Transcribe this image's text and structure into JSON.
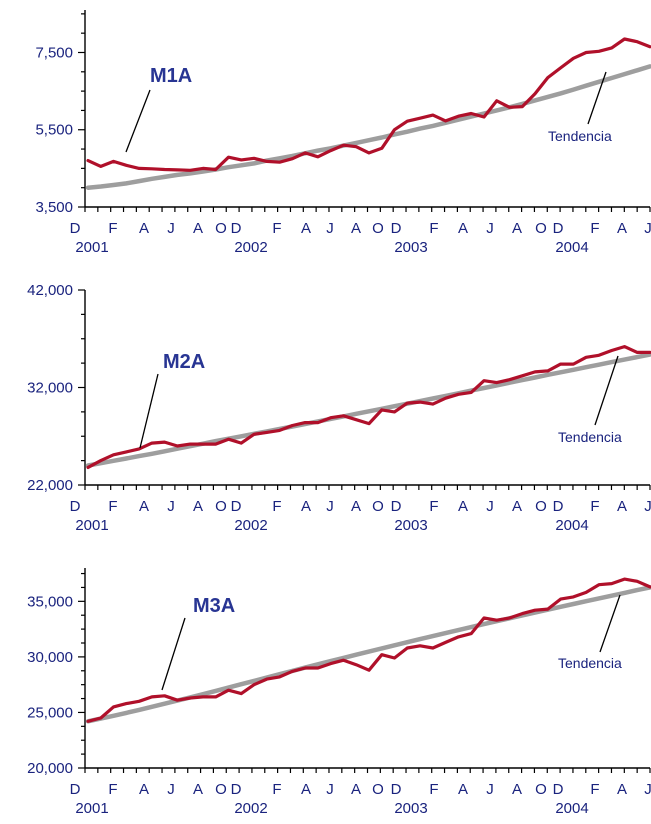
{
  "chart_data": [
    {
      "type": "line",
      "colors": {
        "series": "#b0102a",
        "trend": "#9e9e9e"
      },
      "ylim": [
        3500,
        8600
      ],
      "yticks": [
        3500,
        5500,
        7500
      ],
      "ytick_labels": [
        "3,500",
        "5,500",
        "7,500"
      ],
      "x_tick_labels": [
        "D",
        "F",
        "A",
        "J",
        "A",
        "O",
        "D",
        "F",
        "A",
        "J",
        "A",
        "O",
        "D",
        "F",
        "A",
        "J",
        "A",
        "O",
        "D",
        "F",
        "A",
        "J"
      ],
      "year_labels": [
        "2001",
        "2002",
        "2003",
        "2004"
      ],
      "series": [
        {
          "name": "M1A",
          "values": [
            4700,
            4550,
            4680,
            4580,
            4500,
            4490,
            4470,
            4460,
            4450,
            4500,
            4470,
            4790,
            4720,
            4760,
            4680,
            4660,
            4750,
            4900,
            4800,
            4960,
            5100,
            5060,
            4900,
            5020,
            5500,
            5720,
            5800,
            5880,
            5730,
            5850,
            5920,
            5830,
            6250,
            6080,
            6100,
            6430,
            6850,
            7100,
            7350,
            7500,
            7530,
            7620,
            7850,
            7780,
            7650
          ]
        },
        {
          "name": "Tendencia",
          "values": [
            4000,
            4030,
            4070,
            4110,
            4170,
            4230,
            4280,
            4330,
            4370,
            4420,
            4470,
            4530,
            4580,
            4630,
            4700,
            4760,
            4820,
            4890,
            4960,
            5020,
            5090,
            5160,
            5230,
            5300,
            5380,
            5450,
            5530,
            5600,
            5680,
            5760,
            5840,
            5920,
            6000,
            6080,
            6170,
            6260,
            6350,
            6440,
            6540,
            6640,
            6740,
            6840,
            6940,
            7040,
            7140
          ]
        }
      ],
      "annotations": [
        "M1A",
        "Tendencia"
      ]
    },
    {
      "type": "line",
      "colors": {
        "series": "#b0102a",
        "trend": "#9e9e9e"
      },
      "ylim": [
        22000,
        42000
      ],
      "yticks": [
        22000,
        32000,
        42000
      ],
      "ytick_labels": [
        "22,000",
        "32,000",
        "42,000"
      ],
      "x_tick_labels": [
        "D",
        "F",
        "A",
        "J",
        "A",
        "O",
        "D",
        "F",
        "A",
        "J",
        "A",
        "O",
        "D",
        "F",
        "A",
        "J",
        "A",
        "O",
        "D",
        "F",
        "A",
        "J"
      ],
      "year_labels": [
        "2001",
        "2002",
        "2003",
        "2004"
      ],
      "series": [
        {
          "name": "M2A",
          "values": [
            23800,
            24500,
            25100,
            25400,
            25700,
            26300,
            26400,
            26000,
            26200,
            26200,
            26200,
            26700,
            26300,
            27200,
            27400,
            27600,
            28100,
            28400,
            28400,
            28900,
            29100,
            28700,
            28300,
            29700,
            29500,
            30400,
            30500,
            30300,
            30900,
            31300,
            31500,
            32700,
            32500,
            32800,
            33200,
            33600,
            33700,
            34400,
            34400,
            35100,
            35300,
            35800,
            36200,
            35600,
            35600
          ]
        },
        {
          "name": "Tendencia",
          "values": [
            24000,
            24240,
            24480,
            24720,
            24960,
            25200,
            25460,
            25720,
            25980,
            26240,
            26500,
            26750,
            27000,
            27250,
            27500,
            27750,
            28000,
            28260,
            28520,
            28780,
            29040,
            29300,
            29560,
            29820,
            30080,
            30340,
            30600,
            30870,
            31140,
            31410,
            31680,
            31950,
            32220,
            32490,
            32760,
            33030,
            33300,
            33560,
            33820,
            34080,
            34340,
            34600,
            34860,
            35120,
            35380
          ]
        }
      ],
      "annotations": [
        "M2A",
        "Tendencia"
      ]
    },
    {
      "type": "line",
      "colors": {
        "series": "#b0102a",
        "trend": "#9e9e9e"
      },
      "ylim": [
        20000,
        38000
      ],
      "yticks": [
        20000,
        25000,
        30000,
        35000
      ],
      "ytick_labels": [
        "20,000",
        "25,000",
        "30,000",
        "35,000"
      ],
      "x_tick_labels": [
        "D",
        "F",
        "A",
        "J",
        "A",
        "O",
        "D",
        "F",
        "A",
        "J",
        "A",
        "O",
        "D",
        "F",
        "A",
        "J",
        "A",
        "O",
        "D",
        "F",
        "A",
        "J"
      ],
      "year_labels": [
        "2001",
        "2002",
        "2003",
        "2004"
      ],
      "series": [
        {
          "name": "M3A",
          "values": [
            24200,
            24500,
            25500,
            25800,
            26000,
            26400,
            26500,
            26100,
            26300,
            26400,
            26400,
            27000,
            26700,
            27500,
            28000,
            28200,
            28700,
            29000,
            29000,
            29400,
            29700,
            29300,
            28800,
            30200,
            29900,
            30800,
            31000,
            30800,
            31300,
            31800,
            32100,
            33500,
            33300,
            33500,
            33900,
            34200,
            34300,
            35200,
            35400,
            35800,
            36500,
            36600,
            37000,
            36800,
            36300
          ]
        },
        {
          "name": "Tendencia",
          "values": [
            24200,
            24450,
            24700,
            24960,
            25230,
            25510,
            25790,
            26070,
            26350,
            26640,
            26940,
            27240,
            27540,
            27840,
            28140,
            28440,
            28740,
            29040,
            29330,
            29620,
            29910,
            30200,
            30480,
            30760,
            31040,
            31320,
            31600,
            31870,
            32140,
            32410,
            32680,
            32950,
            33210,
            33470,
            33730,
            33990,
            34250,
            34510,
            34760,
            35010,
            35260,
            35510,
            35760,
            36010,
            36250
          ]
        }
      ],
      "annotations": [
        "M3A",
        "Tendencia"
      ]
    }
  ]
}
